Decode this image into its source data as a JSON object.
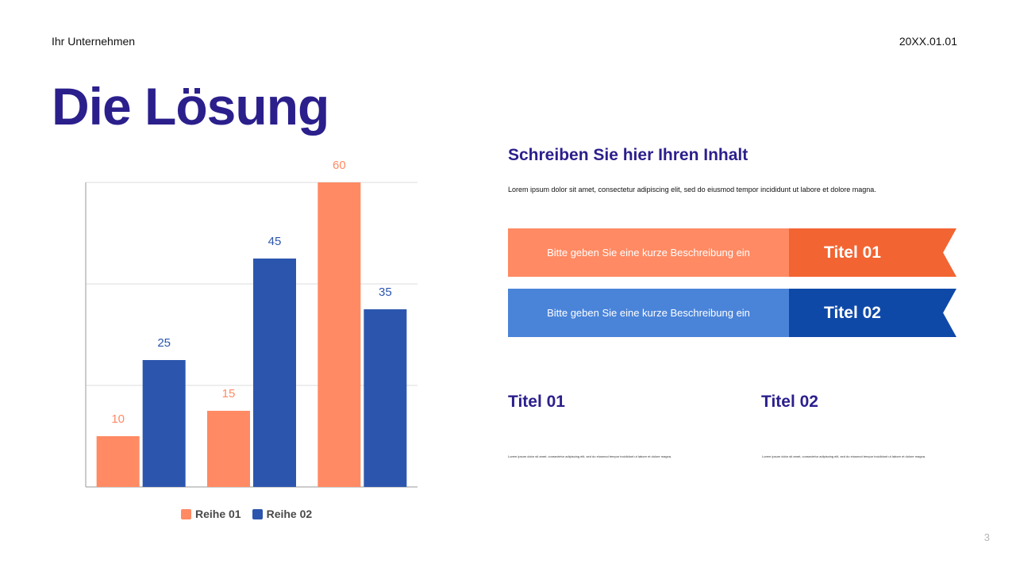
{
  "header": {
    "company": "Ihr Unternehmen",
    "date": "20XX.01.01"
  },
  "title": "Die Lösung",
  "colors": {
    "title": "#2b1f8c",
    "orange": "#ff8a63",
    "orange_dark": "#f26432",
    "blue": "#4a84d9",
    "blue_dark": "#0f49a8",
    "series_blue": "#2c56ae"
  },
  "chart_data": {
    "type": "bar",
    "categories": [
      "",
      "",
      ""
    ],
    "series": [
      {
        "name": "Reihe 01",
        "values": [
          10,
          15,
          60
        ],
        "color": "#ff8a63"
      },
      {
        "name": "Reihe 02",
        "values": [
          25,
          45,
          35
        ],
        "color": "#2c56ae"
      }
    ],
    "ylim": [
      0,
      60
    ],
    "grid": true,
    "data_labels": true,
    "legend": "bottom"
  },
  "content": {
    "heading": "Schreiben Sie hier Ihren Inhalt",
    "text": "Lorem ipsum dolor sit amet, consectetur adipiscing elit, sed do eiusmod tempor incididunt ut labore et dolore magna."
  },
  "banners": [
    {
      "description": "Bitte geben Sie eine kurze Beschreibung ein",
      "title": "Titel 01"
    },
    {
      "description": "Bitte geben Sie eine kurze Beschreibung ein",
      "title": "Titel 02"
    }
  ],
  "columns": [
    {
      "title": "Titel 01",
      "text": "Lorem ipsum dolor sit amet, consectetur adipiscing elit, sed do eiusmod tempor incididunt ut labore et dolore magna."
    },
    {
      "title": "Titel 02",
      "text": "Lorem ipsum dolor sit amet, consectetur adipiscing elit, sed do eiusmod tempor incididunt ut labore et dolore magna."
    }
  ],
  "page_number": "3"
}
